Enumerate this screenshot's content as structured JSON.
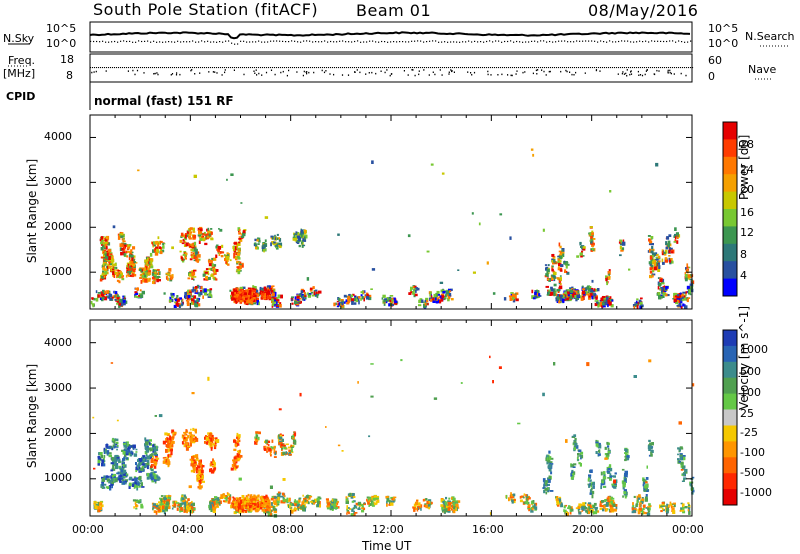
{
  "header": {
    "station": "South Pole Station (fitACF)",
    "beam": "Beam 01",
    "date": "08/May/2016"
  },
  "top_panels": {
    "nsky_label": "N.Sky",
    "nsearch_label": "N.Search",
    "nsky_ticks": [
      "10^5",
      "10^0"
    ],
    "nsearch_ticks": [
      "10^5",
      "10^0"
    ],
    "freq_label_1": "Freq.",
    "freq_label_2": "[MHz]",
    "freq_ticks": [
      "18",
      "8"
    ],
    "nave_label": "Nave",
    "nave_ticks": [
      "60",
      "0"
    ],
    "cpid_label": "CPID",
    "mode_text": "normal (fast) 151 RF"
  },
  "chart_data": [
    {
      "type": "heatmap",
      "name": "Power",
      "xlabel": "",
      "ylabel": "Slant Range [km]",
      "xlim": [
        "00:00",
        "24:00"
      ],
      "ylim": [
        180,
        4500
      ],
      "yticks": [
        "4000",
        "3000",
        "2000",
        "1000"
      ],
      "colorbar": {
        "label": "Power [dB]",
        "ticks": [
          "28",
          "24",
          "20",
          "16",
          "12",
          "8",
          "4"
        ],
        "colors": [
          "#e60000",
          "#ff3c00",
          "#ff7800",
          "#f5a000",
          "#c8c800",
          "#78c832",
          "#3c9650",
          "#2d7878",
          "#2850a0",
          "#0000ff"
        ]
      },
      "echo_regions": [
        {
          "t_start": 0.0,
          "t_end": 8.5,
          "r_min": 200,
          "r_max": 2200,
          "typical": "high power 20-28 dB near 1000 km"
        },
        {
          "t_start": 5.5,
          "t_end": 7.0,
          "r_min": 200,
          "r_max": 700,
          "typical": "very high power near 400 km"
        },
        {
          "t_start": 6.0,
          "t_end": 18.0,
          "r_min": 250,
          "r_max": 800,
          "typical": "mixed 8-20 dB"
        },
        {
          "t_start": 18.0,
          "t_end": 24.0,
          "r_min": 200,
          "r_max": 2000,
          "typical": "12-28 dB striations"
        }
      ]
    },
    {
      "type": "heatmap",
      "name": "Velocity",
      "xlabel": "Time UT",
      "ylabel": "Slant Range [km]",
      "xlim": [
        "00:00",
        "24:00"
      ],
      "xticks": [
        "00:00",
        "04:00",
        "08:00",
        "12:00",
        "16:00",
        "20:00",
        "00:00"
      ],
      "ylim": [
        180,
        4500
      ],
      "yticks": [
        "4000",
        "3000",
        "2000",
        "1000"
      ],
      "colorbar": {
        "label": "Velocity [m s^-1]",
        "ticks": [
          "1000",
          "500",
          "100",
          "25",
          "-25",
          "-100",
          "-500",
          "-1000"
        ],
        "colors": [
          "#1e3cb4",
          "#2864b4",
          "#3c8c8c",
          "#50a050",
          "#64c846",
          "#c8c8c8",
          "#f5c800",
          "#ff9600",
          "#ff6400",
          "#ff2800",
          "#e60000"
        ]
      },
      "echo_regions": [
        {
          "t_start": 0.0,
          "t_end": 2.5,
          "r_min": 800,
          "r_max": 2000,
          "typical": "positive 500-1000"
        },
        {
          "t_start": 2.5,
          "t_end": 8.5,
          "r_min": 800,
          "r_max": 2000,
          "typical": "negative -100 to -500"
        },
        {
          "t_start": 6.0,
          "t_end": 15.0,
          "r_min": 250,
          "r_max": 800,
          "typical": "negative -100 to -500"
        },
        {
          "t_start": 18.0,
          "t_end": 24.0,
          "r_min": 200,
          "r_max": 2000,
          "typical": "positive 100-500"
        }
      ]
    }
  ]
}
